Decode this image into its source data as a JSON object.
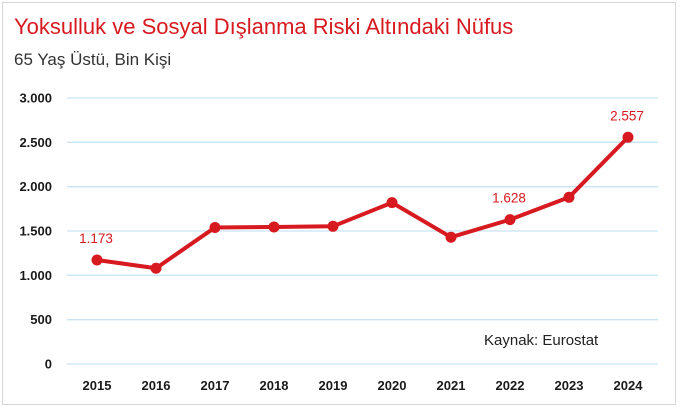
{
  "title": "Yoksulluk ve Sosyal Dışlanma Riski Altındaki Nüfus",
  "subtitle": "65 Yaş Üstü, Bin Kişi",
  "source": "Kaynak: Eurostat",
  "colors": {
    "line": "#d71920",
    "grid": "#c9e4f5",
    "title": "#d71920"
  },
  "chart_data": {
    "type": "line",
    "categories": [
      "2015",
      "2016",
      "2017",
      "2018",
      "2019",
      "2020",
      "2021",
      "2022",
      "2023",
      "2024"
    ],
    "values": [
      1173,
      1080,
      1540,
      1545,
      1553,
      1820,
      1430,
      1628,
      1880,
      2557
    ],
    "ylim": [
      0,
      3000
    ],
    "yticks": [
      0,
      500,
      1000,
      1500,
      2000,
      2500,
      3000
    ],
    "ytick_labels": [
      "0",
      "500",
      "1.000",
      "1.500",
      "2.000",
      "2.500",
      "3.000"
    ],
    "data_labels": [
      {
        "index": 0,
        "text": "1.173"
      },
      {
        "index": 7,
        "text": "1.628"
      },
      {
        "index": 9,
        "text": "2.557"
      }
    ],
    "grid": true,
    "legend": false
  }
}
